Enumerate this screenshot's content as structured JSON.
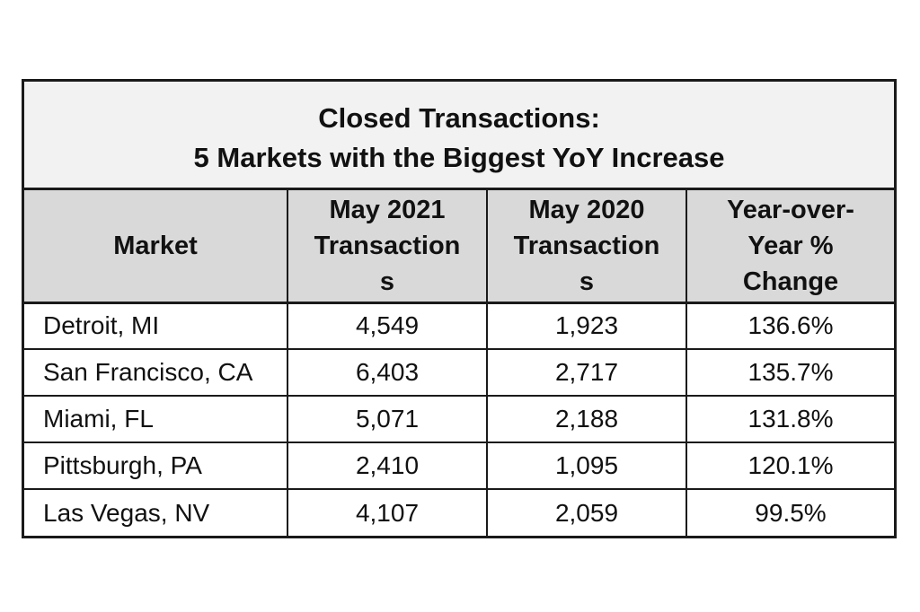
{
  "title": {
    "line1": "Closed Transactions:",
    "line2": "5 Markets with the Biggest YoY Increase"
  },
  "headers": {
    "market": "Market",
    "may2021": "May 2021\nTransaction\ns",
    "may2020": "May 2020\nTransaction\ns",
    "yoy": "Year-over-\nYear %\nChange"
  },
  "rows": [
    {
      "market": "Detroit, MI",
      "may2021": "4,549",
      "may2020": "1,923",
      "yoy": "136.6%"
    },
    {
      "market": "San Francisco, CA",
      "may2021": "6,403",
      "may2020": "2,717",
      "yoy": "135.7%"
    },
    {
      "market": "Miami, FL",
      "may2021": "5,071",
      "may2020": "2,188",
      "yoy": "131.8%"
    },
    {
      "market": "Pittsburgh, PA",
      "may2021": "2,410",
      "may2020": "1,095",
      "yoy": "120.1%"
    },
    {
      "market": "Las Vegas, NV",
      "may2021": "4,107",
      "may2020": "2,059",
      "yoy": "99.5%"
    }
  ]
}
